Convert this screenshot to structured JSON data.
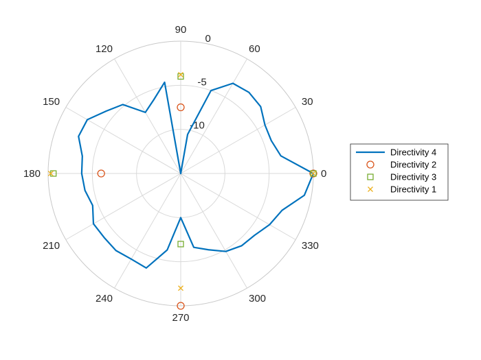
{
  "chart_data": {
    "type": "polar",
    "theta_unit": "degrees",
    "theta_ticks": [
      0,
      30,
      60,
      90,
      120,
      150,
      180,
      210,
      240,
      270,
      300,
      330
    ],
    "theta_tick_labels": [
      "0",
      "30",
      "60",
      "90",
      "120",
      "150",
      "180",
      "210",
      "240",
      "270",
      "300",
      "330"
    ],
    "r_ticks": [
      -10,
      -5,
      0
    ],
    "r_tick_labels": [
      "-10",
      "-5",
      "0"
    ],
    "r_tick_angle": 80,
    "rlim": [
      -15,
      0
    ],
    "grid": true,
    "legend_position": "right",
    "series": [
      {
        "name": "Directivity 4",
        "type": "line",
        "color": "#0072BD",
        "theta": [
          0,
          10,
          20,
          30,
          40,
          50,
          60,
          70,
          80,
          90,
          100,
          110,
          120,
          130,
          140,
          150,
          160,
          170,
          180,
          190,
          200,
          210,
          220,
          230,
          240,
          250,
          260,
          270,
          280,
          290,
          300,
          310,
          320,
          330,
          340,
          350,
          360
        ],
        "r": [
          0,
          -3.5,
          -4.1,
          -4.0,
          -3.2,
          -3.0,
          -3.2,
          -5.0,
          -10.5,
          -15,
          -4.5,
          -6.1,
          -7.0,
          -4.8,
          -4.0,
          -2.8,
          -2.7,
          -3.7,
          -3.8,
          -4.0,
          -4.4,
          -3.6,
          -3.7,
          -3.6,
          -3.8,
          -3.6,
          -6.2,
          -10.0,
          -6.5,
          -5.8,
          -4.8,
          -4.3,
          -4.1,
          -3.4,
          -2.8,
          -0.8,
          0
        ]
      },
      {
        "name": "Directivity 2",
        "type": "marker",
        "marker": "circle",
        "color": "#D95319",
        "theta": [
          0,
          90,
          180,
          270
        ],
        "r": [
          0,
          -7.5,
          -6.0,
          0
        ]
      },
      {
        "name": "Directivity 3",
        "type": "marker",
        "marker": "square",
        "color": "#77AC30",
        "theta": [
          0,
          90,
          180,
          270
        ],
        "r": [
          0,
          -4.0,
          -0.6,
          -7.0
        ]
      },
      {
        "name": "Directivity 1",
        "type": "marker",
        "marker": "x",
        "color": "#EDB120",
        "theta": [
          0,
          90,
          180,
          270
        ],
        "r": [
          0,
          -3.8,
          -0.3,
          -2.0
        ]
      }
    ]
  }
}
